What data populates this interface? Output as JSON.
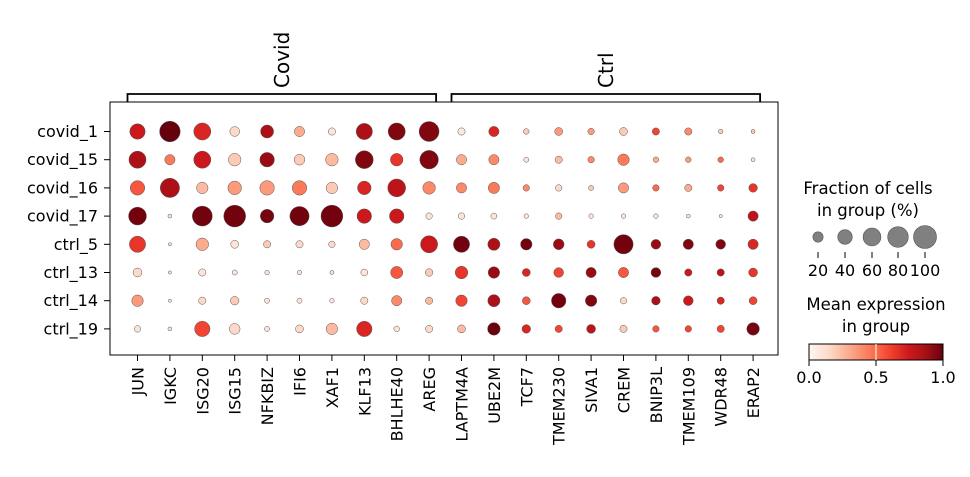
{
  "chart_data": {
    "type": "dotplot",
    "rows": [
      "covid_1",
      "covid_15",
      "covid_16",
      "covid_17",
      "ctrl_5",
      "ctrl_13",
      "ctrl_14",
      "ctrl_19"
    ],
    "columns": [
      "JUN",
      "IGKC",
      "ISG20",
      "ISG15",
      "NFKBIZ",
      "IFI6",
      "XAF1",
      "KLF13",
      "BHLHE40",
      "AREG",
      "LAPTM4A",
      "UBE2M",
      "TCF7",
      "TMEM230",
      "SIVA1",
      "CREM",
      "BNIP3L",
      "TMEM109",
      "WDR48",
      "ERAP2"
    ],
    "column_groups": [
      {
        "label": "Covid",
        "start": 0,
        "end": 9
      },
      {
        "label": "Ctrl",
        "start": 10,
        "end": 19
      }
    ],
    "fraction_pct": [
      [
        45,
        80,
        55,
        18,
        32,
        20,
        10,
        50,
        55,
        75,
        10,
        20,
        6,
        12,
        8,
        12,
        10,
        10,
        4,
        3
      ],
      [
        55,
        20,
        55,
        30,
        40,
        22,
        30,
        60,
        30,
        65,
        20,
        20,
        5,
        10,
        8,
        25,
        6,
        6,
        6,
        3
      ],
      [
        40,
        70,
        25,
        35,
        40,
        40,
        25,
        35,
        60,
        30,
        20,
        24,
        8,
        8,
        5,
        20,
        8,
        10,
        8,
        14
      ],
      [
        60,
        3,
        75,
        90,
        35,
        70,
        90,
        40,
        40,
        8,
        8,
        7,
        4,
        8,
        4,
        4,
        4,
        3,
        2,
        20
      ],
      [
        50,
        2,
        30,
        12,
        10,
        10,
        8,
        20,
        25,
        55,
        50,
        28,
        25,
        22,
        12,
        70,
        18,
        20,
        18,
        20
      ],
      [
        15,
        2,
        10,
        5,
        4,
        4,
        3,
        9,
        28,
        11,
        30,
        25,
        12,
        18,
        20,
        20,
        18,
        10,
        10,
        15
      ],
      [
        25,
        2,
        10,
        14,
        5,
        5,
        4,
        10,
        20,
        10,
        25,
        28,
        12,
        40,
        25,
        8,
        14,
        18,
        10,
        12
      ],
      [
        8,
        3,
        45,
        22,
        5,
        12,
        25,
        45,
        6,
        10,
        12,
        30,
        14,
        10,
        15,
        10,
        8,
        8,
        10,
        30
      ]
    ],
    "mean_expression": [
      [
        0.75,
        1.0,
        0.7,
        0.15,
        0.85,
        0.3,
        0.1,
        0.85,
        0.95,
        0.95,
        0.08,
        0.7,
        0.2,
        0.35,
        0.35,
        0.2,
        0.6,
        0.4,
        0.2,
        0.2
      ],
      [
        0.85,
        0.45,
        0.75,
        0.2,
        0.9,
        0.2,
        0.25,
        0.95,
        0.65,
        0.95,
        0.3,
        0.4,
        0.1,
        0.25,
        0.4,
        0.45,
        0.3,
        0.35,
        0.5,
        0.1
      ],
      [
        0.55,
        0.85,
        0.25,
        0.35,
        0.35,
        0.45,
        0.2,
        0.7,
        0.8,
        0.4,
        0.4,
        0.45,
        0.4,
        0.15,
        0.2,
        0.35,
        0.5,
        0.3,
        0.6,
        0.65
      ],
      [
        0.98,
        0.1,
        0.98,
        0.98,
        0.97,
        0.98,
        0.98,
        0.75,
        0.75,
        0.1,
        0.1,
        0.1,
        0.1,
        0.25,
        0.1,
        0.1,
        0.1,
        0.1,
        0.1,
        0.8
      ],
      [
        0.65,
        0.1,
        0.3,
        0.1,
        0.2,
        0.15,
        0.15,
        0.25,
        0.5,
        0.75,
        0.98,
        0.85,
        0.98,
        0.9,
        0.65,
        0.98,
        0.9,
        0.95,
        0.95,
        0.7
      ],
      [
        0.15,
        0.1,
        0.1,
        0.1,
        0.1,
        0.1,
        0.1,
        0.1,
        0.55,
        0.2,
        0.65,
        0.9,
        0.7,
        0.6,
        0.9,
        0.55,
        0.97,
        0.75,
        0.8,
        0.65
      ],
      [
        0.35,
        0.1,
        0.15,
        0.2,
        0.1,
        0.1,
        0.1,
        0.15,
        0.4,
        0.25,
        0.6,
        0.85,
        0.55,
        0.98,
        0.95,
        0.15,
        0.85,
        0.75,
        0.7,
        0.6
      ],
      [
        0.1,
        0.1,
        0.6,
        0.15,
        0.1,
        0.15,
        0.25,
        0.7,
        0.1,
        0.15,
        0.25,
        0.99,
        0.7,
        0.6,
        0.8,
        0.2,
        0.55,
        0.6,
        0.6,
        0.97
      ]
    ],
    "size_legend": {
      "title": "Fraction of cells\nin group (%)",
      "values": [
        20,
        40,
        60,
        80,
        100
      ],
      "labels": [
        "20",
        "40",
        "60",
        "80",
        "100"
      ]
    },
    "color_legend": {
      "title": "Mean expression\nin group",
      "colormap": "Reds",
      "range": [
        0.0,
        1.0
      ],
      "ticks": [
        "0.0",
        "0.5",
        "1.0"
      ]
    }
  }
}
